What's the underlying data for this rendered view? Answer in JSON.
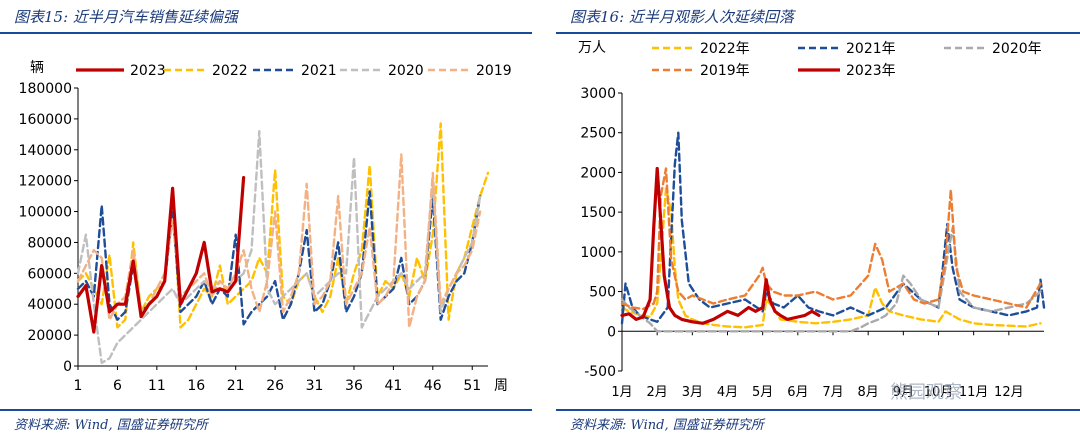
{
  "left_panel": {
    "title": "图表15:  近半月汽车销售延续偏强",
    "source": "资料来源:  Wind,  国盛证券研究所"
  },
  "right_panel": {
    "title": "图表16:  近半月观影人次延续回落",
    "source": "资料来源:  Wind,  国盛证券研究所"
  },
  "watermark": "熊园观察",
  "colors": {
    "y2023": "#c00000",
    "y2022": "#ffc000",
    "y2021": "#1f4e99",
    "y2020": "#bfbfbf",
    "y2019": "#f4b183",
    "rule": "#1a4a9a"
  },
  "chart_data": [
    {
      "type": "line",
      "ylabel": "辆",
      "xlabel": "周",
      "ylim": [
        0,
        180000
      ],
      "yticks": [
        0,
        20000,
        40000,
        60000,
        80000,
        100000,
        120000,
        140000,
        160000,
        180000
      ],
      "xlim": [
        1,
        53
      ],
      "xticks": [
        1,
        6,
        11,
        16,
        21,
        26,
        31,
        36,
        41,
        46,
        51
      ],
      "legend_position": "top",
      "series": [
        {
          "name": "2023",
          "color": "#c00000",
          "dash": "solid",
          "x": [
            1,
            2,
            3,
            4,
            5,
            6,
            7,
            8,
            9,
            10,
            11,
            12,
            13,
            14,
            15,
            16,
            17,
            18,
            19,
            20,
            21,
            22
          ],
          "values": [
            45000,
            52000,
            22000,
            65000,
            35000,
            40000,
            40000,
            68000,
            32000,
            40000,
            45000,
            55000,
            115000,
            40000,
            50000,
            60000,
            80000,
            48000,
            50000,
            48000,
            55000,
            122000
          ]
        },
        {
          "name": "2022",
          "color": "#ffc000",
          "dash": "dash",
          "x": [
            1,
            2,
            3,
            4,
            5,
            6,
            7,
            8,
            9,
            10,
            11,
            12,
            13,
            14,
            15,
            16,
            17,
            18,
            19,
            20,
            21,
            22,
            23,
            24,
            25,
            26,
            27,
            28,
            29,
            30,
            31,
            32,
            33,
            34,
            35,
            36,
            37,
            38,
            39,
            40,
            41,
            42,
            43,
            44,
            45,
            46,
            47,
            48,
            49,
            50,
            51,
            52,
            53
          ],
          "values": [
            55000,
            60000,
            50000,
            40000,
            72000,
            25000,
            30000,
            80000,
            35000,
            45000,
            50000,
            55000,
            110000,
            25000,
            30000,
            40000,
            50000,
            45000,
            65000,
            40000,
            45000,
            50000,
            55000,
            70000,
            60000,
            127000,
            45000,
            40000,
            55000,
            60000,
            45000,
            35000,
            45000,
            70000,
            40000,
            60000,
            75000,
            130000,
            45000,
            55000,
            50000,
            60000,
            45000,
            70000,
            55000,
            85000,
            157000,
            30000,
            60000,
            70000,
            90000,
            110000,
            125000
          ]
        },
        {
          "name": "2021",
          "color": "#1f4e99",
          "dash": "dash",
          "x": [
            1,
            2,
            3,
            4,
            5,
            6,
            7,
            8,
            9,
            10,
            11,
            12,
            13,
            14,
            15,
            16,
            17,
            18,
            19,
            20,
            21,
            22,
            23,
            24,
            25,
            26,
            27,
            28,
            29,
            30,
            31,
            32,
            33,
            34,
            35,
            36,
            37,
            38,
            39,
            40,
            41,
            42,
            43,
            44,
            45,
            46,
            47,
            48,
            49,
            50,
            51,
            52
          ],
          "values": [
            50000,
            55000,
            45000,
            104000,
            40000,
            30000,
            35000,
            65000,
            35000,
            40000,
            45000,
            55000,
            100000,
            35000,
            40000,
            45000,
            55000,
            40000,
            50000,
            45000,
            85000,
            27000,
            35000,
            40000,
            45000,
            55000,
            30000,
            40000,
            60000,
            88000,
            35000,
            40000,
            55000,
            80000,
            35000,
            45000,
            60000,
            113000,
            40000,
            45000,
            50000,
            70000,
            40000,
            45000,
            55000,
            110000,
            30000,
            45000,
            55000,
            60000,
            80000,
            110000
          ]
        },
        {
          "name": "2020",
          "color": "#bfbfbf",
          "dash": "dash",
          "x": [
            1,
            2,
            3,
            4,
            5,
            6,
            7,
            8,
            9,
            10,
            11,
            12,
            13,
            14,
            15,
            16,
            17,
            18,
            19,
            20,
            21,
            22,
            23,
            24,
            25,
            26,
            27,
            28,
            29,
            30,
            31,
            32,
            33,
            34,
            35,
            36,
            37,
            38,
            39,
            40,
            41,
            42,
            43,
            44,
            45,
            46,
            47,
            48,
            49,
            50,
            51,
            52
          ],
          "values": [
            60000,
            85000,
            40000,
            2000,
            5000,
            15000,
            20000,
            25000,
            30000,
            35000,
            40000,
            45000,
            50000,
            40000,
            45000,
            50000,
            55000,
            50000,
            55000,
            50000,
            55000,
            60000,
            75000,
            152000,
            50000,
            40000,
            45000,
            50000,
            55000,
            60000,
            45000,
            50000,
            55000,
            60000,
            60000,
            135000,
            25000,
            35000,
            45000,
            50000,
            55000,
            60000,
            50000,
            55000,
            60000,
            120000,
            35000,
            50000,
            60000,
            70000,
            80000,
            110000
          ]
        },
        {
          "name": "2019",
          "color": "#f4b183",
          "dash": "dash",
          "x": [
            1,
            2,
            3,
            4,
            5,
            6,
            7,
            8,
            9,
            10,
            11,
            12,
            13,
            14,
            15,
            16,
            17,
            18,
            19,
            20,
            21,
            22,
            23,
            24,
            25,
            26,
            27,
            28,
            29,
            30,
            31,
            32,
            33,
            34,
            35,
            36,
            37,
            38,
            39,
            40,
            41,
            42,
            43,
            44,
            45,
            46,
            47,
            48,
            49,
            50,
            51,
            52
          ],
          "values": [
            55000,
            65000,
            75000,
            70000,
            30000,
            40000,
            45000,
            75000,
            35000,
            40000,
            50000,
            60000,
            95000,
            45000,
            50000,
            55000,
            60000,
            45000,
            55000,
            50000,
            60000,
            75000,
            50000,
            35000,
            55000,
            100000,
            35000,
            45000,
            60000,
            118000,
            40000,
            45000,
            55000,
            110000,
            40000,
            50000,
            60000,
            90000,
            40000,
            45000,
            55000,
            137000,
            25000,
            45000,
            55000,
            125000,
            40000,
            50000,
            60000,
            65000,
            75000,
            100000
          ]
        }
      ]
    },
    {
      "type": "line",
      "ylabel": "万人",
      "ylim": [
        -500,
        3000
      ],
      "yticks": [
        -500,
        0,
        500,
        1000,
        1500,
        2000,
        2500,
        3000
      ],
      "xlim": [
        1,
        13
      ],
      "xticks": [
        1,
        2,
        3,
        4,
        5,
        6,
        7,
        8,
        9,
        10,
        11,
        12
      ],
      "xtick_labels": [
        "1月",
        "2月",
        "3月",
        "4月",
        "5月",
        "6月",
        "7月",
        "8月",
        "9月",
        "10月",
        "11月",
        "12月"
      ],
      "legend_position": "top",
      "series": [
        {
          "name": "2022年",
          "color": "#ffc000",
          "dash": "dash",
          "x": [
            1,
            1.2,
            1.4,
            1.6,
            1.8,
            2.0,
            2.1,
            2.25,
            2.4,
            2.5,
            2.6,
            2.8,
            3.0,
            3.3,
            3.6,
            4.0,
            4.5,
            5.0,
            5.1,
            5.3,
            5.5,
            6.0,
            6.5,
            7.0,
            7.5,
            8.0,
            8.2,
            8.4,
            8.6,
            9.0,
            9.5,
            10.0,
            10.2,
            10.4,
            10.6,
            11.0,
            11.5,
            12.0,
            12.5,
            12.9
          ],
          "values": [
            300,
            250,
            220,
            200,
            180,
            350,
            900,
            1800,
            1500,
            800,
            400,
            200,
            150,
            100,
            80,
            60,
            50,
            80,
            400,
            300,
            150,
            120,
            100,
            120,
            150,
            200,
            550,
            350,
            250,
            200,
            150,
            120,
            250,
            200,
            150,
            100,
            80,
            70,
            60,
            100
          ]
        },
        {
          "name": "2021年",
          "color": "#1f4e99",
          "dash": "dash",
          "x": [
            1,
            1.1,
            1.3,
            1.5,
            1.8,
            2.0,
            2.3,
            2.5,
            2.6,
            2.7,
            2.9,
            3.2,
            3.5,
            4.0,
            4.5,
            5.0,
            5.1,
            5.3,
            5.6,
            6.0,
            6.3,
            6.6,
            7.0,
            7.5,
            8.0,
            8.5,
            9.0,
            9.5,
            10.0,
            10.1,
            10.25,
            10.4,
            10.6,
            11.0,
            11.5,
            12.0,
            12.5,
            12.8,
            12.9,
            13.0
          ],
          "values": [
            100,
            600,
            300,
            200,
            150,
            120,
            300,
            2100,
            2500,
            1400,
            600,
            400,
            300,
            350,
            400,
            250,
            500,
            350,
            300,
            450,
            300,
            250,
            200,
            300,
            200,
            300,
            600,
            400,
            300,
            700,
            1350,
            800,
            400,
            300,
            250,
            200,
            250,
            300,
            650,
            300
          ]
        },
        {
          "name": "2020年",
          "color": "#aaaaaa",
          "dash": "dash",
          "x": [
            1,
            1.2,
            1.5,
            1.8,
            2.0,
            2.3,
            2.6,
            3.0,
            3.5,
            4.0,
            4.5,
            5.0,
            5.5,
            6.0,
            6.5,
            7.0,
            7.5,
            7.8,
            8.0,
            8.3,
            8.5,
            8.8,
            9.0,
            9.2,
            9.5,
            10.0,
            10.2,
            10.4,
            10.6,
            11.0,
            11.5,
            12.0,
            12.5,
            12.9
          ],
          "values": [
            400,
            300,
            200,
            100,
            0,
            0,
            0,
            0,
            0,
            0,
            0,
            0,
            0,
            0,
            0,
            0,
            0,
            50,
            100,
            150,
            200,
            350,
            700,
            600,
            400,
            300,
            800,
            1300,
            500,
            300,
            250,
            300,
            350,
            500
          ]
        },
        {
          "name": "2019年",
          "color": "#ed7d31",
          "dash": "dash",
          "x": [
            1,
            1.3,
            1.6,
            1.9,
            2.0,
            2.1,
            2.25,
            2.4,
            2.6,
            2.8,
            3.0,
            3.3,
            3.6,
            4.0,
            4.5,
            4.9,
            5.0,
            5.1,
            5.3,
            5.6,
            6.0,
            6.5,
            7.0,
            7.5,
            8.0,
            8.2,
            8.4,
            8.6,
            9.0,
            9.3,
            9.6,
            10.0,
            10.2,
            10.35,
            10.5,
            10.7,
            11.0,
            11.5,
            12.0,
            12.5,
            12.9
          ],
          "values": [
            350,
            300,
            280,
            350,
            500,
            1700,
            2050,
            900,
            500,
            400,
            450,
            400,
            350,
            400,
            450,
            700,
            800,
            600,
            500,
            450,
            450,
            500,
            400,
            450,
            700,
            1100,
            900,
            500,
            600,
            400,
            350,
            400,
            900,
            1780,
            800,
            500,
            450,
            400,
            350,
            300,
            600
          ]
        },
        {
          "name": "2023年",
          "color": "#c00000",
          "dash": "solid",
          "x": [
            1,
            1.2,
            1.4,
            1.6,
            1.8,
            1.9,
            2.0,
            2.1,
            2.2,
            2.35,
            2.5,
            2.7,
            3.0,
            3.3,
            3.6,
            4.0,
            4.3,
            4.6,
            4.8,
            5.0,
            5.1,
            5.2,
            5.35,
            5.5,
            5.7,
            6.0,
            6.2,
            6.4,
            6.6
          ],
          "values": [
            200,
            220,
            150,
            180,
            400,
            1300,
            2050,
            1400,
            700,
            300,
            200,
            150,
            120,
            100,
            150,
            250,
            200,
            300,
            250,
            300,
            650,
            400,
            250,
            200,
            150,
            180,
            200,
            250,
            200
          ]
        }
      ]
    }
  ]
}
